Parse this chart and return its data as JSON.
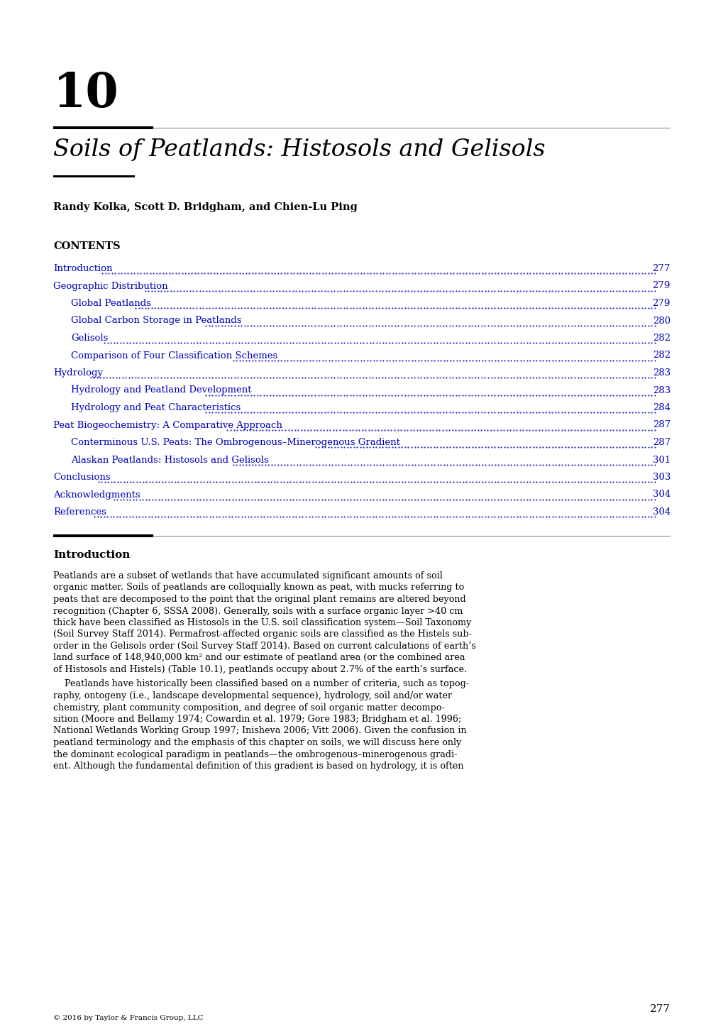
{
  "chapter_number": "10",
  "chapter_title": "Soils of Peatlands: Histosols and Gelisols",
  "authors": "Randy Kolka, Scott D. Bridgham, and Chien-Lu Ping",
  "contents_label": "CONTENTS",
  "toc_entries": [
    {
      "text": "Introduction",
      "page": "277",
      "indent": 0
    },
    {
      "text": "Geographic Distribution",
      "page": "279",
      "indent": 0
    },
    {
      "text": "Global Peatlands",
      "page": "279",
      "indent": 1
    },
    {
      "text": "Global Carbon Storage in Peatlands",
      "page": "280",
      "indent": 1
    },
    {
      "text": "Gelisols",
      "page": "282",
      "indent": 1
    },
    {
      "text": "Comparison of Four Classification Schemes",
      "page": "282",
      "indent": 1
    },
    {
      "text": "Hydrology",
      "page": "283",
      "indent": 0
    },
    {
      "text": "Hydrology and Peatland Development",
      "page": "283",
      "indent": 1
    },
    {
      "text": "Hydrology and Peat Characteristics",
      "page": "284",
      "indent": 1
    },
    {
      "text": "Peat Biogeochemistry: A Comparative Approach",
      "page": "287",
      "indent": 0
    },
    {
      "text": "Conterminous U.S. Peats: The Ombrogenous–Minerogenous Gradient",
      "page": "287",
      "indent": 1
    },
    {
      "text": "Alaskan Peatlands: Histosols and Gelisols",
      "page": "301",
      "indent": 1
    },
    {
      "text": "Conclusions",
      "page": "303",
      "indent": 0
    },
    {
      "text": "Acknowledgments",
      "page": "304",
      "indent": 0
    },
    {
      "text": "References",
      "page": "304",
      "indent": 0
    }
  ],
  "section_title": "Introduction",
  "body_para1_lines": [
    "Peatlands are a subset of wetlands that have accumulated significant amounts of soil",
    "organic matter. Soils of peatlands are colloquially known as peat, with mucks referring to",
    "peats that are decomposed to the point that the original plant remains are altered beyond",
    "recognition (Chapter 6, SSSA 2008). Generally, soils with a surface organic layer >40 cm",
    "thick have been classified as Histosols in the U.S. soil classification system—Soil Taxonomy",
    "(Soil Survey Staff 2014). Permafrost-affected organic soils are classified as the Histels sub-",
    "order in the Gelisols order (Soil Survey Staff 2014). Based on current calculations of earth’s",
    "land surface of 148,940,000 km² and our estimate of peatland area (or the combined area",
    "of Histosols and Histels) (Table 10.1), peatlands occupy about 2.7% of the earth’s surface."
  ],
  "body_para2_lines": [
    "    Peatlands have historically been classified based on a number of criteria, such as topog-",
    "raphy, ontogeny (i.e., landscape developmental sequence), hydrology, soil and/or water",
    "chemistry, plant community composition, and degree of soil organic matter decompo-",
    "sition (Moore and Bellamy 1974; Cowardin et al. 1979; Gore 1983; Bridgham et al. 1996;",
    "National Wetlands Working Group 1997; Inisheva 2006; Vitt 2006). Given the confusion in",
    "peatland terminology and the emphasis of this chapter on soils, we will discuss here only",
    "the dominant ecological paradigm in peatlands—the ombrogenous–minerogenous gradi-",
    "ent. Although the fundamental definition of this gradient is based on hydrology, it is often"
  ],
  "page_number": "277",
  "copyright": "© 2016 by Taylor & Francis Group, LLC",
  "toc_color": "#0000bb",
  "background_color": "#ffffff",
  "text_color": "#000000"
}
